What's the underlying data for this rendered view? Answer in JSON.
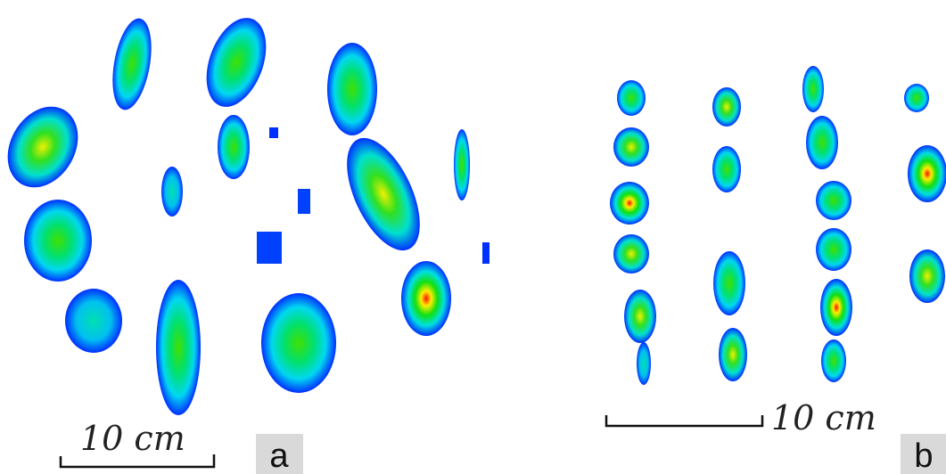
{
  "panels": [
    {
      "label": "a",
      "scale_text": "10 cm"
    },
    {
      "label": "b",
      "scale_text": "10 cm"
    }
  ]
}
